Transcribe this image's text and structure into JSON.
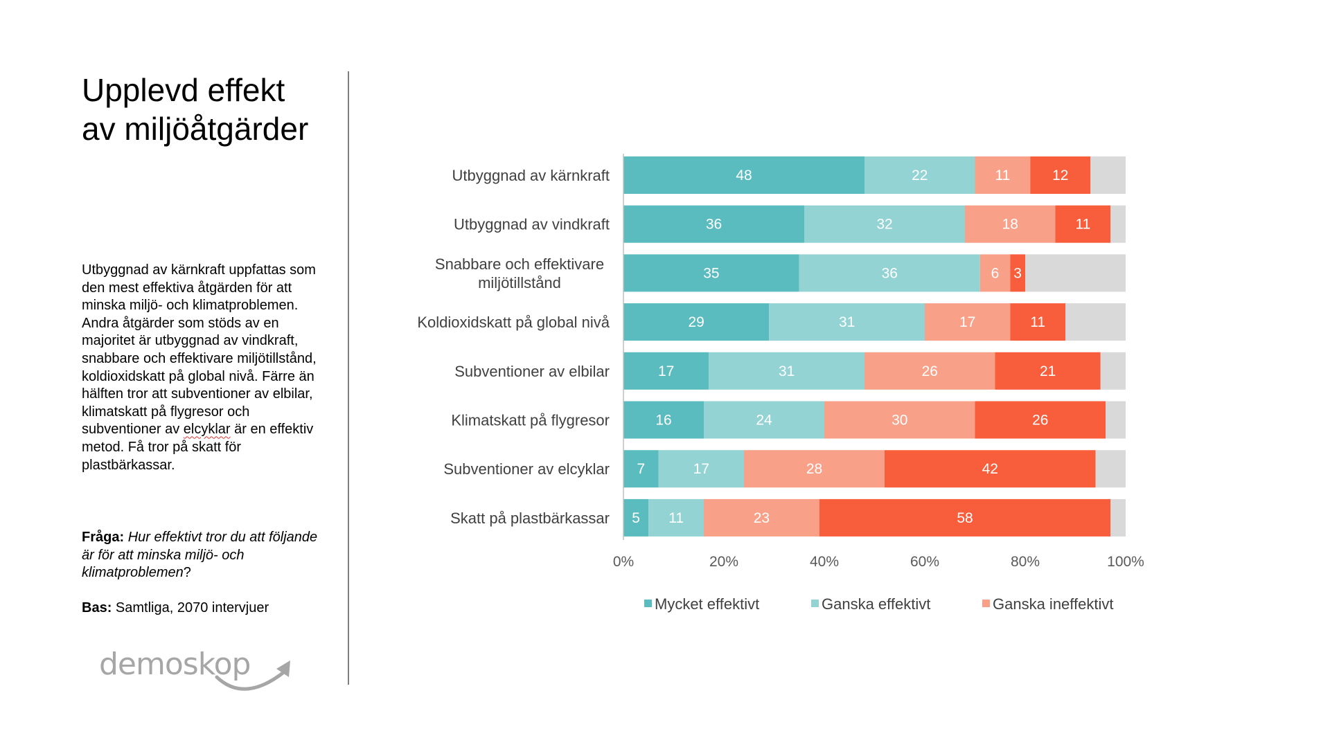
{
  "title": {
    "line1": "Upplevd effekt",
    "line2": "av miljöåtgärder"
  },
  "description": {
    "part1": "Utbyggnad av kärnkraft uppfattas som den mest effektiva åtgärden för att minska miljö- och klimatproblemen. Andra åtgärder som stöds av en majoritet är utbyggnad av vindkraft, snabbare och effektivare miljötillstånd, koldioxidskatt på global nivå. Färre än hälften tror att subventioner av elbilar, klimatskatt på flygresor och subventioner av ",
    "underlined": "elcyklar",
    "part2": " är en effektiv metod. Få tror på skatt för plastbärkassar."
  },
  "question": {
    "label": "Fråga:",
    "text": "Hur effektivt tror du att följande är för att minska miljö- och klimatproblemen",
    "end": "?"
  },
  "base": {
    "label": "Bas:",
    "text": " Samtliga, 2070 intervjuer"
  },
  "logo": {
    "text": "demoskop"
  },
  "colors": {
    "mycket_effektivt": "#5bbcbf",
    "ganska_effektivt": "#93d3d4",
    "ganska_ineffektivt": "#f9a089",
    "inte_effektivt": "#f95e3c",
    "vet_ej": "#d9d9d9"
  },
  "chart_data": {
    "type": "bar",
    "orientation": "horizontal",
    "stacked": true,
    "categories": [
      [
        "Utbyggnad av kärnkraft"
      ],
      [
        "Utbyggnad av vindkraft"
      ],
      [
        "Snabbare och effektivare",
        "miljötillstånd"
      ],
      [
        "Koldioxidskatt på global nivå"
      ],
      [
        "Subventioner av elbilar"
      ],
      [
        "Klimatskatt på flygresor"
      ],
      [
        "Subventioner av elcyklar"
      ],
      [
        "Skatt på plastbärkassar"
      ]
    ],
    "series": [
      {
        "name": "Mycket effektivt",
        "color": "#5bbcbf",
        "values": [
          48,
          36,
          35,
          29,
          17,
          16,
          7,
          5
        ]
      },
      {
        "name": "Ganska effektivt",
        "color": "#93d3d4",
        "values": [
          22,
          32,
          36,
          31,
          31,
          24,
          17,
          11
        ]
      },
      {
        "name": "Ganska ineffektivt",
        "color": "#f9a089",
        "values": [
          11,
          18,
          6,
          17,
          26,
          30,
          28,
          23
        ]
      },
      {
        "name": "",
        "color": "#f95e3c",
        "values": [
          12,
          11,
          3,
          11,
          21,
          26,
          42,
          58
        ],
        "in_legend": false
      },
      {
        "name": "",
        "color": "#d9d9d9",
        "values": [
          7,
          3,
          20,
          12,
          5,
          4,
          6,
          3
        ],
        "in_legend": false,
        "show_labels": false
      }
    ],
    "xlim": [
      0,
      100
    ],
    "xticks": [
      "0%",
      "20%",
      "40%",
      "60%",
      "80%",
      "100%"
    ],
    "legend_position": "bottom"
  }
}
